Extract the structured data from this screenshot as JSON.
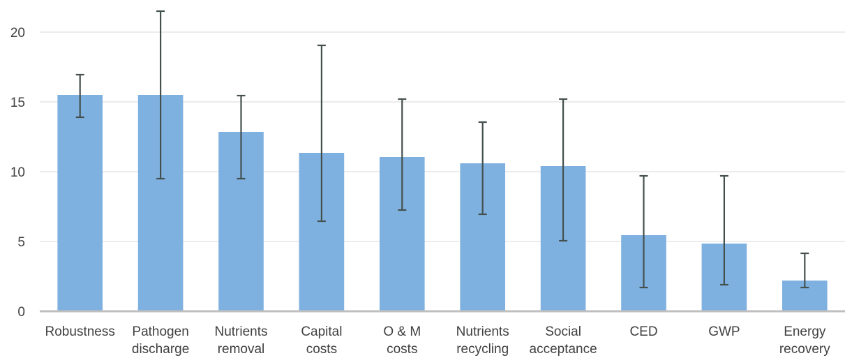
{
  "chart_data": {
    "type": "bar",
    "title": "",
    "xlabel": "",
    "ylabel": "",
    "ylim": [
      0,
      20
    ],
    "yticks": [
      0,
      5,
      10,
      15,
      20
    ],
    "grid": true,
    "legend": "none",
    "bar_color": "#7fb1e0",
    "error_bar_color": "#44504e",
    "categories": [
      [
        "Robustness"
      ],
      [
        "Pathogen",
        "discharge"
      ],
      [
        "Nutrients",
        "removal"
      ],
      [
        "Capital",
        "costs"
      ],
      [
        "O & M",
        "costs"
      ],
      [
        "Nutrients",
        "recycling"
      ],
      [
        "Social",
        "acceptance"
      ],
      [
        "CED"
      ],
      [
        "GWP"
      ],
      [
        "Energy",
        "recovery"
      ]
    ],
    "values": [
      15.5,
      15.5,
      12.85,
      11.35,
      11.05,
      10.6,
      10.4,
      5.45,
      4.85,
      2.2
    ],
    "error_low": [
      13.9,
      9.5,
      9.5,
      6.45,
      7.25,
      6.95,
      5.05,
      1.7,
      1.9,
      1.7
    ],
    "error_high": [
      16.95,
      21.5,
      15.45,
      19.05,
      15.2,
      13.55,
      15.2,
      9.7,
      9.7,
      4.15
    ]
  }
}
